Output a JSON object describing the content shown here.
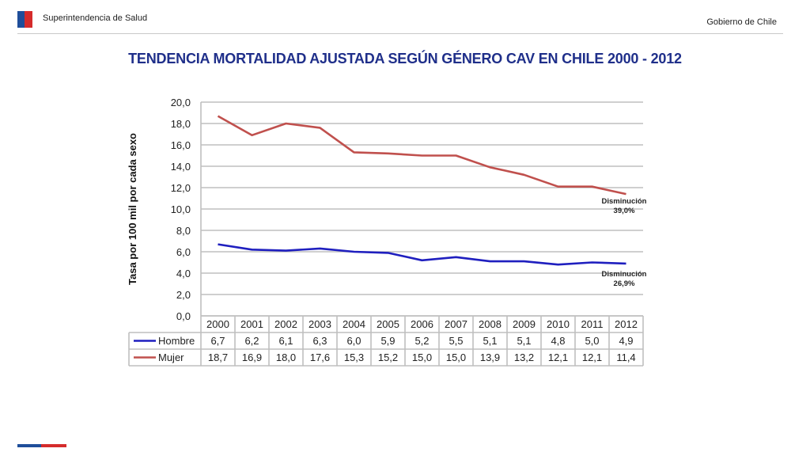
{
  "header": {
    "organization": "Superintendencia de Salud",
    "government": "Gobierno de Chile"
  },
  "colors": {
    "title": "#1f2f8a",
    "hombre": "#1f1fbf",
    "mujer": "#c0504d",
    "grid": "#bfbfbf",
    "flag_blue": "#1f4e9a",
    "flag_red": "#d52b2b"
  },
  "chart_data": {
    "type": "line",
    "title": "TENDENCIA MORTALIDAD AJUSTADA SEGÚN GÉNERO CAV EN CHILE 2000 - 2012",
    "ylabel": "Tasa por 100 mil por cada sexo",
    "xlabel": "",
    "ylim": [
      0,
      20
    ],
    "y_ticks": [
      "0,0",
      "2,0",
      "4,0",
      "6,0",
      "8,0",
      "10,0",
      "12,0",
      "14,0",
      "16,0",
      "18,0",
      "20,0"
    ],
    "grid": true,
    "categories": [
      "2000",
      "2001",
      "2002",
      "2003",
      "2004",
      "2005",
      "2006",
      "2007",
      "2008",
      "2009",
      "2010",
      "2011",
      "2012"
    ],
    "series": [
      {
        "name": "Hombre",
        "values": [
          6.7,
          6.2,
          6.1,
          6.3,
          6.0,
          5.9,
          5.2,
          5.5,
          5.1,
          5.1,
          4.8,
          5.0,
          4.9
        ],
        "labels": [
          "6,7",
          "6,2",
          "6,1",
          "6,3",
          "6,0",
          "5,9",
          "5,2",
          "5,5",
          "5,1",
          "5,1",
          "4,8",
          "5,0",
          "4,9"
        ]
      },
      {
        "name": "Mujer",
        "values": [
          18.7,
          16.9,
          18.0,
          17.6,
          15.3,
          15.2,
          15.0,
          15.0,
          13.9,
          13.2,
          12.1,
          12.1,
          11.4
        ],
        "labels": [
          "18,7",
          "16,9",
          "18,0",
          "17,6",
          "15,3",
          "15,2",
          "15,0",
          "15,0",
          "13,9",
          "13,2",
          "12,1",
          "12,1",
          "11,4"
        ]
      }
    ],
    "annotations": [
      {
        "series": "Mujer",
        "lines": [
          "Disminución",
          "39,0%"
        ]
      },
      {
        "series": "Hombre",
        "lines": [
          "Disminución",
          "26,9%"
        ]
      }
    ],
    "legend_placement": "data-table"
  }
}
